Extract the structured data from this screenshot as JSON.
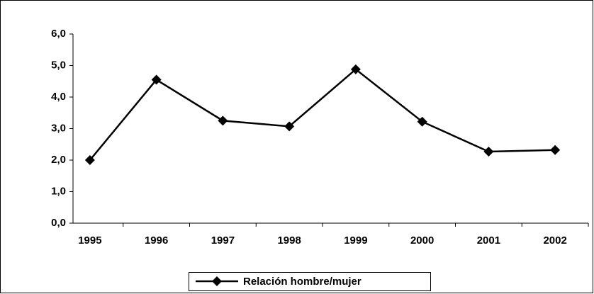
{
  "chart_data": {
    "type": "line",
    "categories": [
      "1995",
      "1996",
      "1997",
      "1998",
      "1999",
      "2000",
      "2001",
      "2002"
    ],
    "series": [
      {
        "name": "Relación hombre/mujer",
        "color": "#000000",
        "values": [
          2.0,
          4.55,
          3.25,
          3.07,
          4.88,
          3.22,
          2.27,
          2.32
        ]
      }
    ],
    "ylim": [
      0,
      6
    ],
    "yticks": [
      {
        "value": 0,
        "label": "0,0"
      },
      {
        "value": 1,
        "label": "1,0"
      },
      {
        "value": 2,
        "label": "2,0"
      },
      {
        "value": 3,
        "label": "3,0"
      },
      {
        "value": 4,
        "label": "4,0"
      },
      {
        "value": 5,
        "label": "5,0"
      },
      {
        "value": 6,
        "label": "6,0"
      }
    ],
    "grid": false,
    "legend": "bottom"
  }
}
